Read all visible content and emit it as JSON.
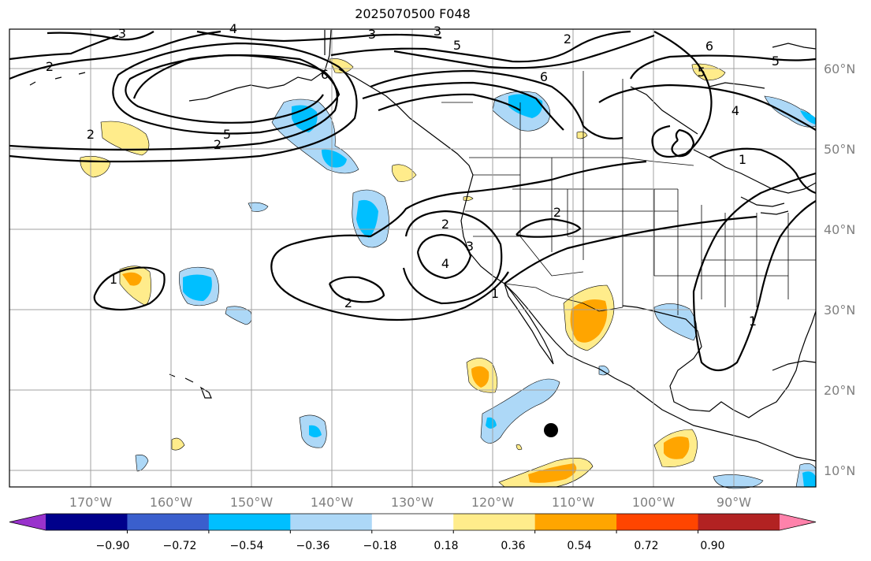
{
  "title": "2025070500 F048",
  "map": {
    "lat_labels": [
      "60°N",
      "50°N",
      "40°N",
      "30°N",
      "20°N",
      "10°N"
    ],
    "lon_labels": [
      "170°W",
      "160°W",
      "150°W",
      "140°W",
      "130°W",
      "120°W",
      "110°W",
      "100°W",
      "90°W"
    ],
    "contour_labels": [
      "3",
      "4",
      "3",
      "5",
      "2",
      "6",
      "2",
      "5",
      "6",
      "2",
      "5",
      "6",
      "2",
      "3",
      "5",
      "4",
      "1",
      "2",
      "2",
      "3",
      "4",
      "1",
      "2",
      "1",
      "1"
    ]
  },
  "colorbar": {
    "labels": [
      "−0.90",
      "−0.72",
      "−0.54",
      "−0.36",
      "−0.18",
      "0.18",
      "0.36",
      "0.54",
      "0.72",
      "0.90"
    ],
    "colors": [
      "#9932cc",
      "#00008b",
      "#3a5fcd",
      "#00bfff",
      "#add8f7",
      "#ffffff",
      "#ffec8b",
      "#ffa500",
      "#ff4500",
      "#b22222",
      "#ff82ab"
    ]
  },
  "colors": {
    "blue_light": "#add8f7",
    "blue_mid": "#00bfff",
    "orange_light": "#ffec8b",
    "orange_mid": "#ffa500",
    "grid": "#a0a0a0"
  }
}
